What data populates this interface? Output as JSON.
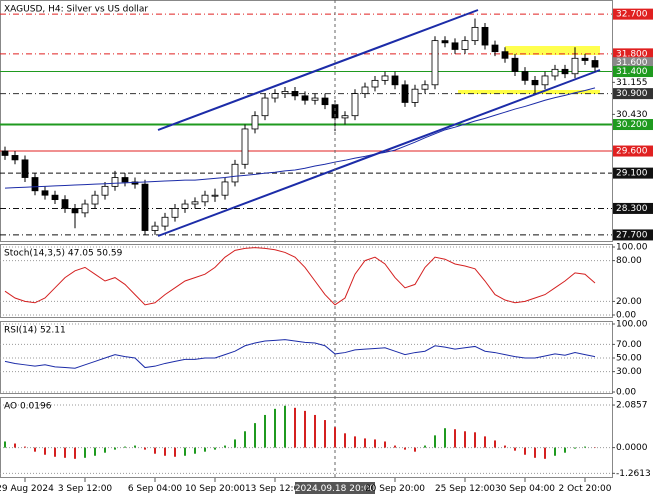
{
  "chart_data": [
    {
      "type": "candlestick",
      "title": "XAGUSD, H4:  Silver vs US dollar",
      "categories": [
        null,
        null,
        "29 Aug 2024",
        null,
        null,
        null,
        null,
        null,
        "3 Sep 12:00",
        null,
        null,
        null,
        null,
        null,
        null,
        "6 Sep 04:00",
        null,
        null,
        null,
        null,
        null,
        "10 Sep 20:00",
        null,
        null,
        null,
        null,
        null,
        "13 Sep 12:00",
        null,
        null,
        null,
        null,
        null,
        "2024.09.18 20:00",
        null,
        null,
        null,
        null,
        null,
        "20 Sep 20:00",
        null,
        null,
        null,
        null,
        null,
        null,
        "25 Sep 12:00",
        null,
        null,
        null,
        null,
        null,
        "30 Sep 04:00",
        null,
        null,
        null,
        null,
        null,
        "2 Oct 20:00",
        null
      ],
      "crosshair_index": 33,
      "open": [
        29.6,
        29.5,
        29.4,
        29.0,
        28.7,
        28.6,
        28.5,
        28.3,
        28.2,
        28.4,
        28.6,
        28.8,
        29.0,
        28.9,
        28.85,
        27.8,
        27.9,
        28.1,
        28.3,
        28.4,
        28.45,
        28.6,
        28.6,
        28.9,
        29.3,
        30.1,
        30.4,
        30.8,
        30.9,
        30.95,
        30.85,
        30.75,
        30.8,
        30.65,
        30.35,
        30.4,
        30.9,
        31.05,
        31.2,
        31.3,
        31.1,
        30.7,
        31.0,
        31.1,
        32.1,
        32.05,
        31.9,
        32.1,
        32.4,
        32.0,
        31.85,
        31.7,
        31.4,
        31.2,
        31.1,
        31.3,
        31.45,
        31.35,
        31.7,
        31.65
      ],
      "high": [
        29.7,
        29.6,
        29.5,
        29.1,
        28.8,
        28.7,
        28.6,
        28.4,
        28.5,
        28.7,
        28.9,
        29.15,
        29.1,
        29.0,
        28.95,
        28.0,
        28.2,
        28.4,
        28.5,
        28.55,
        28.7,
        28.75,
        29.0,
        29.4,
        30.2,
        30.5,
        30.9,
        31.0,
        31.05,
        31.05,
        30.95,
        30.9,
        30.9,
        30.75,
        30.5,
        31.0,
        31.15,
        31.3,
        31.4,
        31.4,
        31.2,
        31.1,
        31.2,
        32.2,
        32.2,
        32.15,
        32.2,
        32.6,
        32.5,
        32.1,
        31.95,
        31.8,
        31.5,
        31.3,
        31.4,
        31.55,
        31.55,
        31.95,
        31.8,
        31.75
      ],
      "low": [
        29.4,
        29.3,
        28.9,
        28.6,
        28.5,
        28.4,
        28.2,
        27.85,
        28.1,
        28.3,
        28.5,
        28.7,
        28.8,
        28.75,
        27.7,
        27.7,
        27.8,
        28.0,
        28.2,
        28.3,
        28.35,
        28.45,
        28.5,
        28.8,
        29.2,
        30.0,
        30.3,
        30.7,
        30.8,
        30.75,
        30.65,
        30.65,
        30.55,
        30.05,
        30.2,
        30.3,
        30.8,
        30.95,
        31.1,
        31.0,
        30.6,
        30.6,
        30.9,
        31.0,
        31.95,
        31.8,
        31.8,
        32.0,
        31.9,
        31.75,
        31.6,
        31.3,
        31.1,
        30.9,
        31.0,
        31.2,
        31.25,
        31.25,
        31.55,
        31.4
      ],
      "close": [
        29.5,
        29.4,
        29.0,
        28.7,
        28.6,
        28.5,
        28.3,
        28.2,
        28.4,
        28.6,
        28.8,
        29.0,
        28.9,
        28.85,
        27.8,
        27.9,
        28.1,
        28.3,
        28.4,
        28.45,
        28.6,
        28.6,
        28.9,
        29.3,
        30.1,
        30.4,
        30.8,
        30.9,
        30.95,
        30.85,
        30.75,
        30.8,
        30.65,
        30.35,
        30.4,
        30.9,
        31.05,
        31.2,
        31.3,
        31.1,
        30.7,
        31.0,
        31.1,
        32.1,
        32.05,
        31.9,
        32.1,
        32.4,
        32.0,
        31.85,
        31.7,
        31.4,
        31.2,
        31.1,
        31.3,
        31.45,
        31.35,
        31.7,
        31.65,
        31.5
      ],
      "series": [
        {
          "color": "#1c2ca8",
          "values": [
            28.76,
            28.77,
            28.78,
            28.79,
            28.8,
            28.81,
            28.82,
            28.83,
            28.84,
            28.85,
            28.86,
            28.87,
            28.88,
            28.89,
            28.9,
            28.91,
            28.92,
            28.93,
            28.94,
            28.94,
            28.96,
            28.98,
            29.0,
            29.03,
            29.05,
            29.07,
            29.1,
            29.12,
            29.15,
            29.17,
            29.21,
            29.26,
            29.3,
            29.35,
            29.39,
            29.44,
            29.48,
            29.53,
            29.57,
            29.62,
            29.71,
            29.8,
            29.9,
            29.99,
            30.08,
            30.14,
            30.21,
            30.28,
            30.34,
            30.41,
            30.48,
            30.55,
            30.61,
            30.68,
            30.75,
            30.81,
            30.86,
            30.92,
            30.97,
            31.03
          ]
        }
      ],
      "ylim": [
        27.54,
        33.02
      ],
      "yticks": [
        {
          "value": 31.155,
          "label": "31.155"
        },
        {
          "value": 30.43,
          "label": "30.430"
        }
      ],
      "levels": [
        {
          "value": 32.7,
          "label": "32.700",
          "color": "#e02020",
          "style": "dashdot"
        },
        {
          "value": 31.8,
          "label": "31.800",
          "color": "#e02020",
          "style": "dashdot"
        },
        {
          "value": 31.6,
          "label": "31.600",
          "color": "#8a8a8a",
          "style": "none"
        },
        {
          "value": 31.4,
          "label": "31.400",
          "color": "#1f9a1f",
          "style": "solid"
        },
        {
          "value": 30.9,
          "label": "30.900",
          "color": "#333333",
          "style": "dashdot"
        },
        {
          "value": 30.2,
          "label": "30.200",
          "color": "#1f9a1f",
          "style": "thick"
        },
        {
          "value": 29.6,
          "label": "29.600",
          "color": "#e02020",
          "style": "solid"
        },
        {
          "value": 29.1,
          "label": "29.100",
          "color": "#111111",
          "style": "dashed"
        },
        {
          "value": 28.3,
          "label": "28.300",
          "color": "#111111",
          "style": "dashdot"
        },
        {
          "value": 27.7,
          "label": "27.700",
          "color": "#111111",
          "style": "dashdot"
        }
      ]
    },
    {
      "type": "line",
      "title": "Stoch(14,3,5) 47.05 50.59",
      "series": [
        {
          "color": "#d42020",
          "values": [
            35,
            25,
            20,
            18,
            25,
            40,
            55,
            65,
            70,
            60,
            50,
            55,
            45,
            30,
            15,
            18,
            30,
            40,
            50,
            55,
            60,
            70,
            85,
            95,
            98,
            99,
            98,
            96,
            92,
            85,
            70,
            50,
            30,
            15,
            25,
            60,
            80,
            85,
            75,
            55,
            40,
            45,
            70,
            85,
            82,
            75,
            72,
            68,
            50,
            30,
            22,
            18,
            20,
            25,
            30,
            40,
            50,
            62,
            60,
            47.05
          ]
        }
      ],
      "ylim": [
        -4.4,
        104.4
      ],
      "yticks": [
        {
          "value": 100,
          "label": "100.00"
        },
        {
          "value": 80,
          "label": "80.00"
        },
        {
          "value": 20,
          "label": "20.00"
        },
        {
          "value": 0,
          "label": "0.00"
        }
      ]
    },
    {
      "type": "line",
      "title": "RSI(14) 52.11",
      "series": [
        {
          "color": "#1c2ca8",
          "values": [
            45,
            42,
            40,
            38,
            40,
            37,
            36,
            35,
            40,
            45,
            50,
            55,
            52,
            50,
            36,
            38,
            42,
            45,
            48,
            48,
            50,
            50,
            55,
            60,
            68,
            72,
            75,
            76,
            77,
            75,
            73,
            72,
            68,
            56,
            58,
            62,
            63,
            64,
            65,
            60,
            55,
            58,
            60,
            68,
            66,
            63,
            65,
            67,
            60,
            58,
            55,
            52,
            50,
            50,
            53,
            56,
            54,
            58,
            55,
            52.11
          ]
        }
      ],
      "ylim": [
        -2.9,
        104.4
      ],
      "yticks": [
        {
          "value": 100,
          "label": "100.00"
        },
        {
          "value": 70,
          "label": "70.00"
        },
        {
          "value": 50,
          "label": "50.00"
        },
        {
          "value": 30,
          "label": "30.00"
        },
        {
          "value": 0,
          "label": "0.00"
        }
      ]
    },
    {
      "type": "bar",
      "title": "AO 0.0196",
      "up_color": "#1f9a1f",
      "down_color": "#d42020",
      "values": [
        0.3,
        0.2,
        0.05,
        -0.2,
        -0.35,
        -0.45,
        -0.5,
        -0.55,
        -0.5,
        -0.4,
        -0.25,
        -0.1,
        0.05,
        0.1,
        -0.1,
        -0.3,
        -0.4,
        -0.45,
        -0.4,
        -0.3,
        -0.2,
        -0.1,
        0.1,
        0.4,
        0.8,
        1.2,
        1.6,
        1.9,
        2.05,
        1.95,
        1.8,
        1.6,
        1.35,
        1.0,
        0.7,
        0.55,
        0.45,
        0.4,
        0.3,
        0.1,
        -0.1,
        -0.2,
        0.1,
        0.6,
        0.95,
        0.9,
        0.8,
        0.75,
        0.55,
        0.35,
        0.1,
        -0.15,
        -0.35,
        -0.5,
        -0.55,
        -0.4,
        -0.25,
        -0.05,
        0.05,
        0.0196
      ],
      "ylim": [
        -1.49,
        2.48
      ],
      "yticks": [
        2.0857,
        {
          "value": 0,
          "label": "0.0000"
        },
        -1.2613
      ]
    }
  ]
}
